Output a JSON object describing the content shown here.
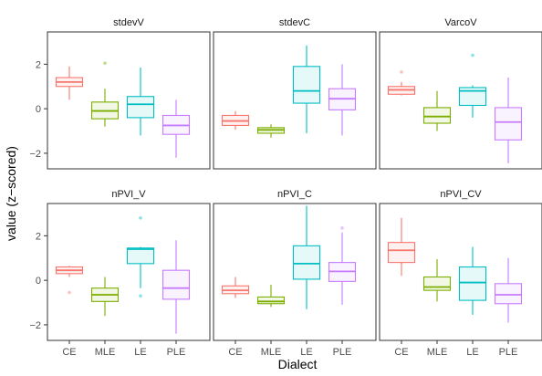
{
  "chart_data": {
    "type": "boxplot",
    "facet_layout": {
      "rows": 2,
      "cols": 3,
      "shared_y": true,
      "shared_x": true
    },
    "xlabel": "Dialect",
    "ylabel": "value (z−scored)",
    "categories": [
      "CE",
      "MLE",
      "LE",
      "PLE"
    ],
    "category_colors": [
      "#F8766D",
      "#7CAE00",
      "#00BFC4",
      "#C77CFF"
    ],
    "ylim": [
      -2.7,
      3.45
    ],
    "y_ticks": [
      -2,
      0,
      2
    ],
    "y_tick_labels": [
      "−2",
      "0",
      "2"
    ],
    "panels": [
      {
        "title": "stdevV",
        "boxes": [
          {
            "category": "CE",
            "whisker_low": 0.4,
            "q1": 1.0,
            "median": 1.2,
            "q3": 1.4,
            "whisker_high": 1.9,
            "outliers": []
          },
          {
            "category": "MLE",
            "whisker_low": -0.8,
            "q1": -0.45,
            "median": -0.1,
            "q3": 0.3,
            "whisker_high": 0.9,
            "outliers": [
              2.05
            ]
          },
          {
            "category": "LE",
            "whisker_low": -1.2,
            "q1": -0.4,
            "median": 0.2,
            "q3": 0.55,
            "whisker_high": 1.85,
            "outliers": []
          },
          {
            "category": "PLE",
            "whisker_low": -2.2,
            "q1": -1.15,
            "median": -0.75,
            "q3": -0.3,
            "whisker_high": 0.4,
            "outliers": []
          }
        ]
      },
      {
        "title": "stdevC",
        "boxes": [
          {
            "category": "CE",
            "whisker_low": -0.95,
            "q1": -0.75,
            "median": -0.55,
            "q3": -0.3,
            "whisker_high": -0.1,
            "outliers": []
          },
          {
            "category": "MLE",
            "whisker_low": -1.3,
            "q1": -1.1,
            "median": -0.95,
            "q3": -0.85,
            "whisker_high": -0.7,
            "outliers": []
          },
          {
            "category": "LE",
            "whisker_low": -1.1,
            "q1": 0.25,
            "median": 0.8,
            "q3": 1.9,
            "whisker_high": 2.85,
            "outliers": []
          },
          {
            "category": "PLE",
            "whisker_low": -1.2,
            "q1": -0.05,
            "median": 0.45,
            "q3": 0.9,
            "whisker_high": 2.0,
            "outliers": []
          }
        ]
      },
      {
        "title": "VarcoV",
        "boxes": [
          {
            "category": "CE",
            "whisker_low": 0.6,
            "q1": 0.65,
            "median": 0.85,
            "q3": 1.0,
            "whisker_high": 1.2,
            "outliers": [
              1.65
            ]
          },
          {
            "category": "MLE",
            "whisker_low": -1.0,
            "q1": -0.65,
            "median": -0.35,
            "q3": 0.05,
            "whisker_high": 0.8,
            "outliers": []
          },
          {
            "category": "LE",
            "whisker_low": -0.4,
            "q1": 0.15,
            "median": 0.8,
            "q3": 0.95,
            "whisker_high": 1.05,
            "outliers": [
              2.4
            ]
          },
          {
            "category": "PLE",
            "whisker_low": -2.45,
            "q1": -1.4,
            "median": -0.6,
            "q3": 0.05,
            "whisker_high": 1.4,
            "outliers": []
          }
        ]
      },
      {
        "title": "nPVI_V",
        "boxes": [
          {
            "category": "CE",
            "whisker_low": 0.15,
            "q1": 0.3,
            "median": 0.45,
            "q3": 0.6,
            "whisker_high": 0.65,
            "outliers": [
              -0.55
            ]
          },
          {
            "category": "MLE",
            "whisker_low": -1.6,
            "q1": -0.95,
            "median": -0.65,
            "q3": -0.35,
            "whisker_high": 0.15,
            "outliers": []
          },
          {
            "category": "LE",
            "whisker_low": -0.35,
            "q1": 0.75,
            "median": 1.4,
            "q3": 1.45,
            "whisker_high": 1.5,
            "outliers": [
              2.8,
              -0.7
            ]
          },
          {
            "category": "PLE",
            "whisker_low": -2.4,
            "q1": -0.85,
            "median": -0.35,
            "q3": 0.45,
            "whisker_high": 1.8,
            "outliers": []
          }
        ]
      },
      {
        "title": "nPVI_C",
        "boxes": [
          {
            "category": "CE",
            "whisker_low": -0.8,
            "q1": -0.6,
            "median": -0.45,
            "q3": -0.25,
            "whisker_high": 0.15,
            "outliers": []
          },
          {
            "category": "MLE",
            "whisker_low": -1.2,
            "q1": -1.05,
            "median": -0.95,
            "q3": -0.75,
            "whisker_high": -0.2,
            "outliers": []
          },
          {
            "category": "LE",
            "whisker_low": -1.3,
            "q1": 0.05,
            "median": 0.75,
            "q3": 1.55,
            "whisker_high": 3.35,
            "outliers": []
          },
          {
            "category": "PLE",
            "whisker_low": -1.1,
            "q1": -0.05,
            "median": 0.4,
            "q3": 0.8,
            "whisker_high": 2.15,
            "outliers": [
              2.35
            ]
          }
        ]
      },
      {
        "title": "nPVI_CV",
        "boxes": [
          {
            "category": "CE",
            "whisker_low": 0.2,
            "q1": 0.8,
            "median": 1.35,
            "q3": 1.7,
            "whisker_high": 2.8,
            "outliers": []
          },
          {
            "category": "MLE",
            "whisker_low": -0.95,
            "q1": -0.45,
            "median": -0.3,
            "q3": 0.15,
            "whisker_high": 0.95,
            "outliers": []
          },
          {
            "category": "LE",
            "whisker_low": -1.55,
            "q1": -0.9,
            "median": -0.1,
            "q3": 0.6,
            "whisker_high": 1.5,
            "outliers": []
          },
          {
            "category": "PLE",
            "whisker_low": -1.9,
            "q1": -1.05,
            "median": -0.65,
            "q3": -0.15,
            "whisker_high": 1.0,
            "outliers": []
          }
        ]
      }
    ]
  }
}
